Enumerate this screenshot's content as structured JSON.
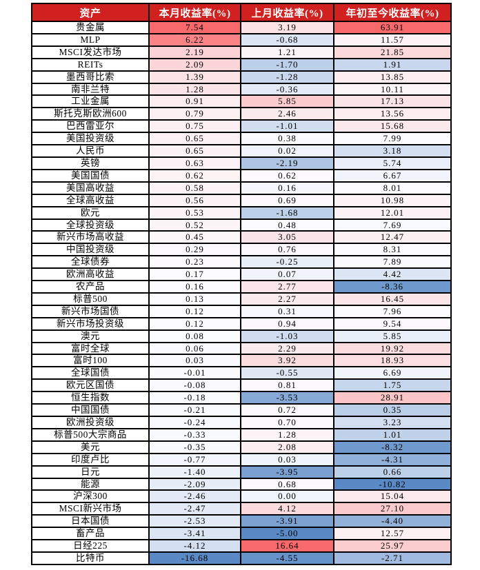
{
  "colors": {
    "header_bg": "#D02020",
    "header_text": "#FFFFFF",
    "grid_border": "#000000",
    "cell_text": "#000000",
    "scale_min": "#5A8AC6",
    "scale_mid": "#FCFCFF",
    "scale_max": "#F8696B"
  },
  "chart_data": {
    "type": "table",
    "subtype": "heatmap",
    "heatmap_rule": "per-column 3-color scale: min=scale_min(blue), median=scale_mid(white), max=scale_max(red); applied to the three numeric columns",
    "columns": [
      "资产",
      "本月收益率(%)",
      "上月收益率(%)",
      "年初至今收益率(%)"
    ],
    "rows": [
      {
        "asset": "贵金属",
        "values": [
          "7.54",
          "3.19",
          "63.91"
        ]
      },
      {
        "asset": "MLP",
        "values": [
          "6.22",
          "-0.68",
          "11.57"
        ]
      },
      {
        "asset": "MSCI发达市场",
        "values": [
          "2.19",
          "1.21",
          "21.85"
        ]
      },
      {
        "asset": "REITs",
        "values": [
          "2.09",
          "-1.70",
          "1.91"
        ]
      },
      {
        "asset": "墨西哥比索",
        "values": [
          "1.39",
          "-1.28",
          "13.85"
        ]
      },
      {
        "asset": "南非兰特",
        "values": [
          "1.28",
          "-0.36",
          "10.11"
        ]
      },
      {
        "asset": "工业金属",
        "values": [
          "0.91",
          "5.85",
          "17.13"
        ]
      },
      {
        "asset": "斯托克斯欧洲600",
        "values": [
          "0.79",
          "2.46",
          "13.56"
        ]
      },
      {
        "asset": "巴西雷亚尔",
        "values": [
          "0.75",
          "-1.01",
          "15.68"
        ]
      },
      {
        "asset": "美国投资级",
        "values": [
          "0.65",
          "0.38",
          "7.99"
        ]
      },
      {
        "asset": "人民币",
        "values": [
          "0.65",
          "0.02",
          "3.18"
        ]
      },
      {
        "asset": "英镑",
        "values": [
          "0.63",
          "-2.19",
          "5.74"
        ]
      },
      {
        "asset": "美国国债",
        "values": [
          "0.62",
          "0.62",
          "6.67"
        ]
      },
      {
        "asset": "美国高收益",
        "values": [
          "0.58",
          "0.16",
          "8.01"
        ]
      },
      {
        "asset": "全球高收益",
        "values": [
          "0.56",
          "0.69",
          "10.98"
        ]
      },
      {
        "asset": "欧元",
        "values": [
          "0.53",
          "-1.68",
          "12.01"
        ]
      },
      {
        "asset": "全球投资级",
        "values": [
          "0.52",
          "0.48",
          "7.69"
        ]
      },
      {
        "asset": "新兴市场高收益",
        "values": [
          "0.45",
          "3.05",
          "12.47"
        ]
      },
      {
        "asset": "中国投资级",
        "values": [
          "0.29",
          "0.76",
          "8.31"
        ]
      },
      {
        "asset": "全球债券",
        "values": [
          "0.23",
          "-0.25",
          "7.89"
        ]
      },
      {
        "asset": "欧洲高收益",
        "values": [
          "0.17",
          "0.07",
          "4.42"
        ]
      },
      {
        "asset": "农产品",
        "values": [
          "0.16",
          "2.77",
          "-8.36"
        ]
      },
      {
        "asset": "标普500",
        "values": [
          "0.13",
          "2.27",
          "16.45"
        ]
      },
      {
        "asset": "新兴市场国债",
        "values": [
          "0.12",
          "0.31",
          "7.96"
        ]
      },
      {
        "asset": "新兴市场投资级",
        "values": [
          "0.12",
          "0.94",
          "9.54"
        ]
      },
      {
        "asset": "澳元",
        "values": [
          "0.08",
          "-1.03",
          "5.85"
        ]
      },
      {
        "asset": "富时全球",
        "values": [
          "0.06",
          "2.29",
          "19.92"
        ]
      },
      {
        "asset": "富时100",
        "values": [
          "0.03",
          "3.92",
          "18.93"
        ]
      },
      {
        "asset": "全球国债",
        "values": [
          "-0.01",
          "-0.55",
          "6.69"
        ]
      },
      {
        "asset": "欧元区国债",
        "values": [
          "-0.08",
          "0.81",
          "1.75"
        ]
      },
      {
        "asset": "恒生指数",
        "values": [
          "-0.18",
          "-3.53",
          "28.91"
        ]
      },
      {
        "asset": "中国国债",
        "values": [
          "-0.21",
          "0.72",
          "0.35"
        ]
      },
      {
        "asset": "欧洲投资级",
        "values": [
          "-0.24",
          "0.70",
          "3.23"
        ]
      },
      {
        "asset": "标普500大宗商品",
        "values": [
          "-0.33",
          "1.28",
          "1.01"
        ]
      },
      {
        "asset": "美元",
        "values": [
          "-0.35",
          "2.08",
          "-8.32"
        ]
      },
      {
        "asset": "印度卢比",
        "values": [
          "-0.77",
          "0.03",
          "-4.31"
        ]
      },
      {
        "asset": "日元",
        "values": [
          "-1.40",
          "-3.95",
          "0.66"
        ]
      },
      {
        "asset": "能源",
        "values": [
          "-2.09",
          "0.68",
          "-10.82"
        ]
      },
      {
        "asset": "沪深300",
        "values": [
          "-2.46",
          "0.00",
          "15.04"
        ]
      },
      {
        "asset": "MSCI新兴市场",
        "values": [
          "-2.47",
          "4.12",
          "27.10"
        ]
      },
      {
        "asset": "日本国债",
        "values": [
          "-2.53",
          "-3.91",
          "-4.40"
        ]
      },
      {
        "asset": "畜产品",
        "values": [
          "-3.41",
          "-5.00",
          "12.57"
        ]
      },
      {
        "asset": "日经225",
        "values": [
          "-4.12",
          "16.64",
          "25.97"
        ]
      },
      {
        "asset": "比特币",
        "values": [
          "-16.68",
          "-4.55",
          "-2.71"
        ]
      }
    ]
  }
}
